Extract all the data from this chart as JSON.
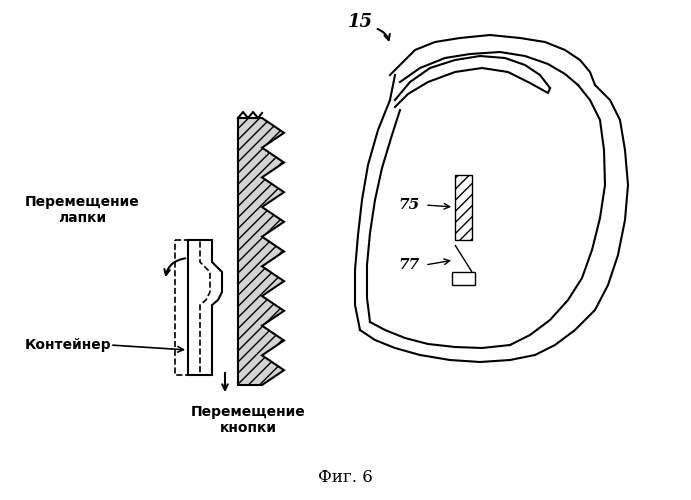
{
  "title": "Фиг. 6",
  "label_15": "15",
  "label_75": "75",
  "label_77": "77",
  "label_tab": "Перемещение\nлапки",
  "label_container": "Контейнер",
  "label_button": "Перемещение\nкнопки",
  "bg_color": "#ffffff",
  "line_color": "#000000",
  "hatch_color": "#555555",
  "figsize": [
    6.91,
    5.0
  ],
  "dpi": 100
}
